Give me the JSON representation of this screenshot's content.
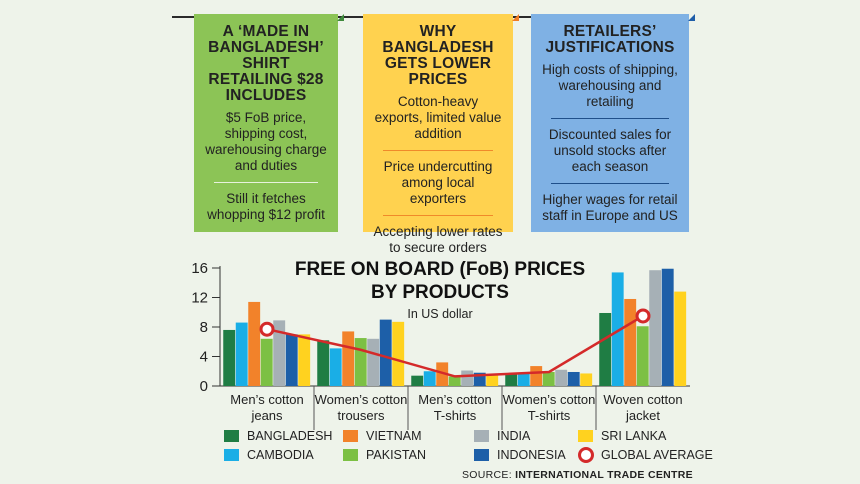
{
  "cards": [
    {
      "title": "A ‘MADE IN BANGLADESH’ SHIRT RETAILING $28 INCLUDES",
      "items": [
        "$5 FoB price, shipping cost, warehousing charge and duties",
        "Still it fetches whopping $12 profit"
      ]
    },
    {
      "title": "WHY BANGLADESH GETS LOWER PRICES",
      "items": [
        "Cotton-heavy exports, limited value addition",
        "Price undercutting among local exporters",
        "Accepting lower rates to secure orders"
      ]
    },
    {
      "title": "RETAILERS’ JUSTIFICATIONS",
      "items": [
        "High costs of shipping, warehousing and retailing",
        "Discounted sales for unsold stocks after each season",
        "Higher wages for retail staff in Europe and US"
      ]
    }
  ],
  "colors": {
    "Bangladesh": "#1f7d44",
    "Cambodia": "#1aaee6",
    "Vietnam": "#f2822a",
    "Pakistan": "#7cc044",
    "India": "#a6b0b6",
    "Indonesia": "#1d5fa8",
    "Sri Lanka": "#ffd21f",
    "Global average": "#d42a2a"
  },
  "chart_data": {
    "type": "bar",
    "title": "FREE ON BOARD (FoB) PRICES BY PRODUCTS",
    "subtitle": "In US dollar",
    "ylim": [
      0,
      16
    ],
    "yticks": [
      0,
      4,
      8,
      12,
      16
    ],
    "categories": [
      "Men’s cotton jeans",
      "Women’s cotton trousers",
      "Men’s cotton T-shirts",
      "Women’s cotton T-shirts",
      "Woven cotton jacket"
    ],
    "series": [
      {
        "name": "BANGLADESH",
        "key": "Bangladesh",
        "values": [
          7.6,
          6.2,
          1.4,
          1.6,
          9.9
        ]
      },
      {
        "name": "CAMBODIA",
        "key": "Cambodia",
        "values": [
          8.6,
          5.1,
          2.0,
          1.8,
          15.4
        ]
      },
      {
        "name": "VIETNAM",
        "key": "Vietnam",
        "values": [
          11.4,
          7.4,
          3.2,
          2.7,
          11.8
        ]
      },
      {
        "name": "PAKISTAN",
        "key": "Pakistan",
        "values": [
          6.4,
          6.5,
          1.3,
          1.9,
          8.1
        ]
      },
      {
        "name": "INDIA",
        "key": "India",
        "values": [
          8.9,
          6.4,
          2.1,
          2.2,
          15.7
        ]
      },
      {
        "name": "INDONESIA",
        "key": "Indonesia",
        "values": [
          7.0,
          9.0,
          1.8,
          1.9,
          15.9
        ]
      },
      {
        "name": "SRI LANKA",
        "key": "Sri Lanka",
        "values": [
          7.0,
          8.7,
          1.6,
          1.7,
          12.8
        ]
      }
    ],
    "line": {
      "name": "GLOBAL AVERAGE",
      "key": "Global average",
      "values": [
        7.7,
        4.9,
        1.3,
        1.9,
        9.5
      ]
    }
  },
  "legend": [
    "BANGLADESH",
    "VIETNAM",
    "INDIA",
    "SRI LANKA",
    "CAMBODIA",
    "PAKISTAN",
    "INDONESIA",
    "GLOBAL AVERAGE"
  ],
  "source": {
    "prefix": "SOURCE:",
    "name": "INTERNATIONAL TRADE CENTRE"
  }
}
